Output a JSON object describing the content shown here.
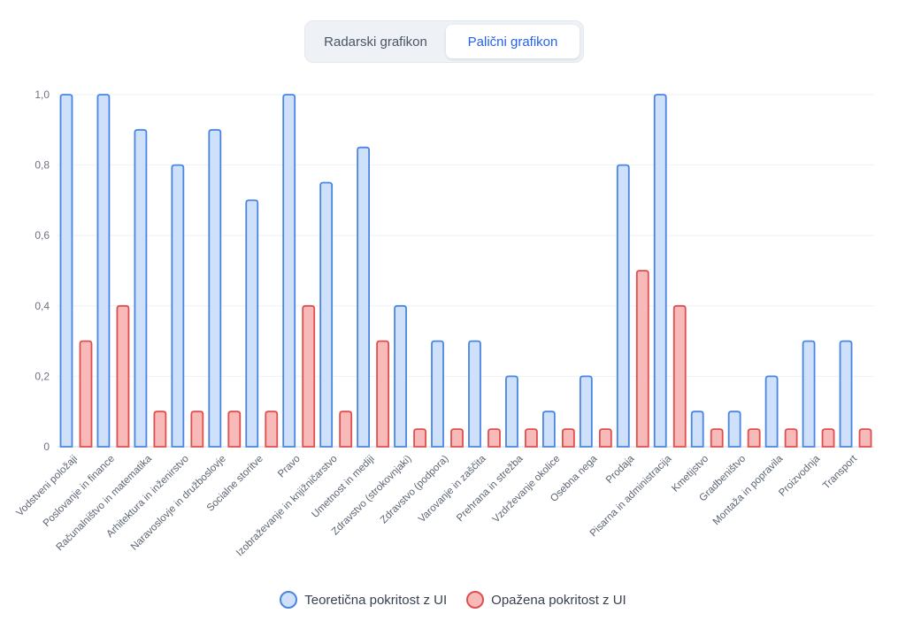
{
  "toggle": {
    "radar_label": "Radarski grafikon",
    "bar_label": "Palični grafikon",
    "active": "bar"
  },
  "colors": {
    "theoretical_fill": "#cfe0fb",
    "theoretical_stroke": "#4a86e0",
    "observed_fill": "#f8b9b9",
    "observed_stroke": "#df4f4f",
    "grid": "#eef1f5",
    "tick_text": "#6b7280"
  },
  "chart_data": {
    "type": "bar",
    "title": "",
    "xlabel": "",
    "ylabel": "",
    "ylim": [
      0,
      1.0
    ],
    "yticks": [
      0,
      0.2,
      0.4,
      0.6,
      0.8,
      1.0
    ],
    "ytick_labels": [
      "0",
      "0,2",
      "0,4",
      "0,6",
      "0,8",
      "1,0"
    ],
    "grid": true,
    "legend_position": "bottom",
    "categories": [
      "Vodstveni položaji",
      "Poslovanje in finance",
      "Računalništvo in matematika",
      "Arhitektura in inženirstvo",
      "Naravoslovje in družboslovje",
      "Socialne storitve",
      "Pravo",
      "Izobraževanje in knjižničarstvo",
      "Umetnost in mediji",
      "Zdravstvo (strokovnjaki)",
      "Zdravstvo (podpora)",
      "Varovanje in zaščita",
      "Prehrana in strežba",
      "Vzdrževanje okolice",
      "Osebna nega",
      "Prodaja",
      "Pisarna in administracija",
      "Kmetijstvo",
      "Gradbeništvo",
      "Montaža in popravila",
      "Proizvodnja",
      "Transport"
    ],
    "series": [
      {
        "name": "Teoretična pokritost z UI",
        "values": [
          1.0,
          1.0,
          0.9,
          0.8,
          0.9,
          0.7,
          1.0,
          0.75,
          0.85,
          0.4,
          0.3,
          0.3,
          0.2,
          0.1,
          0.2,
          0.8,
          1.0,
          0.1,
          0.1,
          0.2,
          0.3,
          0.3
        ]
      },
      {
        "name": "Opažena pokritost z UI",
        "values": [
          0.3,
          0.4,
          0.1,
          0.1,
          0.1,
          0.1,
          0.4,
          0.1,
          0.3,
          0.05,
          0.05,
          0.05,
          0.05,
          0.05,
          0.05,
          0.5,
          0.4,
          0.05,
          0.05,
          0.05,
          0.05,
          0.05
        ]
      }
    ]
  }
}
